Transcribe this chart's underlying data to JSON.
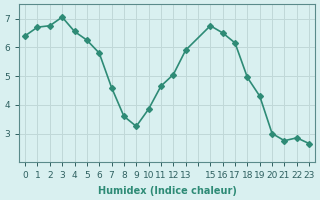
{
  "x": [
    0,
    1,
    2,
    3,
    4,
    5,
    6,
    7,
    8,
    9,
    10,
    11,
    12,
    13,
    15,
    16,
    17,
    18,
    19,
    20,
    21,
    22,
    23
  ],
  "y": [
    6.4,
    6.7,
    6.75,
    7.05,
    6.55,
    6.25,
    5.8,
    4.6,
    3.6,
    3.25,
    3.85,
    4.65,
    5.05,
    5.9,
    6.75,
    6.5,
    6.15,
    4.95,
    4.3,
    3.0,
    2.75,
    2.85,
    2.65
  ],
  "line_color": "#2e8b76",
  "marker": "D",
  "marker_size": 3,
  "bg_color": "#d9f0f0",
  "grid_color": "#c0d8d8",
  "xlabel": "Humidex (Indice chaleur)",
  "xlim": [
    -0.5,
    23.5
  ],
  "ylim": [
    2.0,
    7.5
  ],
  "yticks": [
    3,
    4,
    5,
    6,
    7
  ],
  "xticks": [
    0,
    1,
    2,
    3,
    4,
    5,
    6,
    7,
    8,
    9,
    10,
    11,
    12,
    13,
    14,
    15,
    16,
    17,
    18,
    19,
    20,
    21,
    22,
    23
  ],
  "xtick_labels": [
    "0",
    "1",
    "2",
    "3",
    "4",
    "5",
    "6",
    "7",
    "8",
    "9",
    "10",
    "11",
    "12",
    "13",
    "",
    "15",
    "16",
    "17",
    "18",
    "19",
    "20",
    "21",
    "22",
    "23"
  ],
  "axis_color": "#5a8a8a",
  "tick_color": "#2e6060",
  "label_fontsize": 7,
  "tick_fontsize": 6.5,
  "linewidth": 1.2
}
